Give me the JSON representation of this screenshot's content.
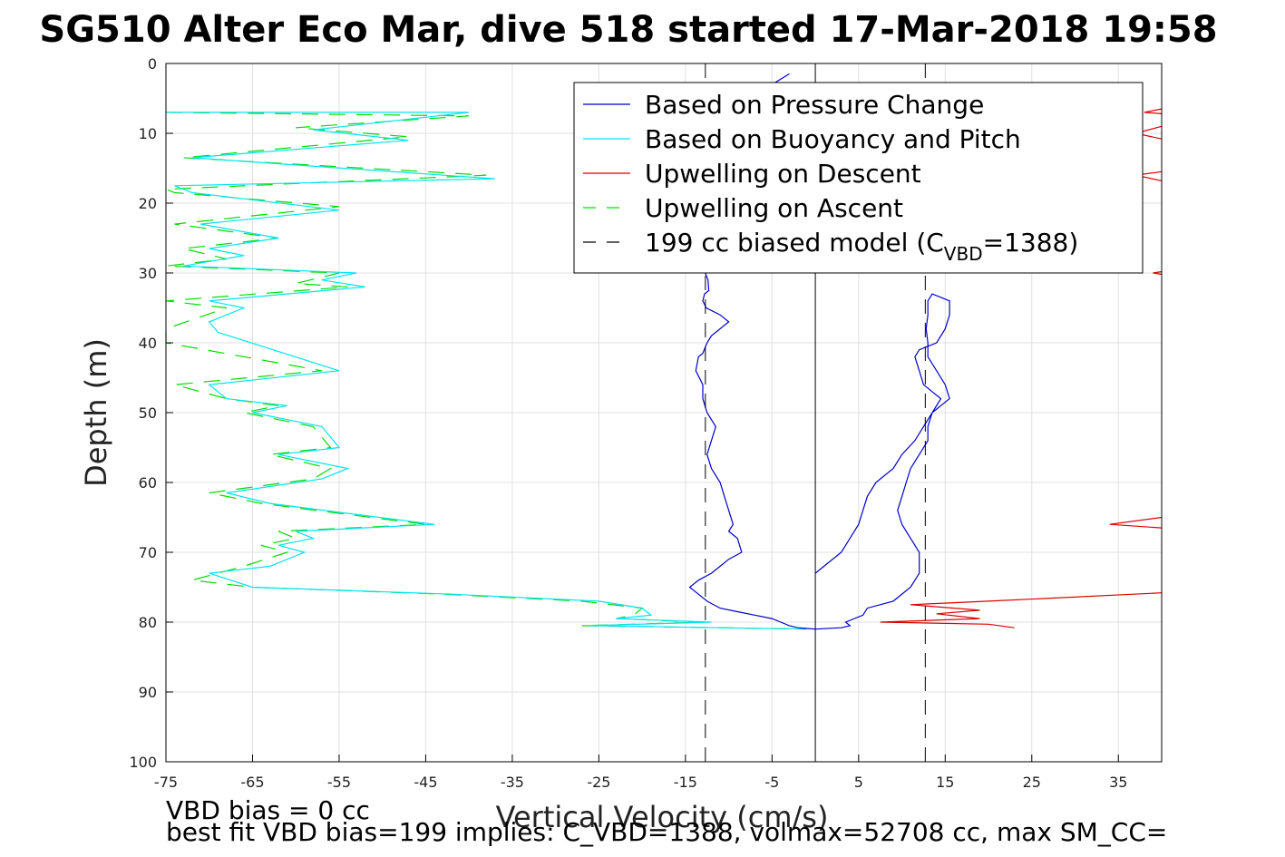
{
  "chart_data": {
    "type": "line",
    "title": "SG510 Alter Eco Mar, dive 518 started 17-Mar-2018 19:58",
    "xlabel": "Vertical Velocity (cm/s)",
    "ylabel": "Depth (m)",
    "xlim": [
      -75,
      40
    ],
    "ylim": [
      0,
      100
    ],
    "y_reversed": true,
    "xticks": [
      -75,
      -65,
      -55,
      -45,
      -35,
      -25,
      -15,
      -5,
      5,
      15,
      25,
      35
    ],
    "yticks": [
      0,
      10,
      20,
      30,
      40,
      50,
      60,
      70,
      80,
      90,
      100
    ],
    "grid": true,
    "legend_position": "top-right",
    "legend": [
      {
        "label": "Based on Pressure Change",
        "color": "#0000cc",
        "dash": "solid"
      },
      {
        "label": "Based on Buoyancy and Pitch",
        "color": "#00e5ee",
        "dash": "solid"
      },
      {
        "label": "Upwelling on Descent",
        "color": "#dd0000",
        "dash": "solid"
      },
      {
        "label": "Upwelling on Ascent",
        "color": "#00dd00",
        "dash": "dashed"
      },
      {
        "label": "199 cc biased model (C",
        "sub": "VBD",
        "suffix": "=1388)",
        "color": "#000000",
        "dash": "dashed"
      }
    ],
    "series": [
      {
        "name": "Based on Pressure Change",
        "segments": [
          {
            "x": [
              -3,
              -5,
              -7,
              -9,
              -10,
              -11,
              -12,
              -12.5,
              -12.8,
              -13,
              -13,
              -12.6,
              -12.7,
              -12.4,
              -12.3,
              -12.8,
              -13,
              -12.6,
              -11,
              -10,
              -12,
              -12.5,
              -13,
              -13.5,
              -13.8,
              -13,
              -13,
              -12.5,
              -11.5,
              -12,
              -12.5,
              -12,
              -11,
              -10.5,
              -10,
              -9.5,
              -10,
              -9,
              -8.5,
              -10,
              -11,
              -12,
              -13.5,
              -14.5,
              -13.5,
              -12.5,
              -11,
              -9,
              -7,
              -5,
              -4,
              -3,
              -2,
              0
            ],
            "y": [
              1.5,
              3,
              5,
              8,
              10,
              13,
              15,
              18,
              21,
              24,
              27,
              29,
              30,
              31,
              32.5,
              33,
              34,
              35,
              36,
              37,
              39,
              40,
              41.5,
              42,
              44,
              46,
              48,
              50,
              52,
              54,
              56,
              58,
              60,
              62,
              64,
              66,
              67,
              68,
              70,
              71,
              72,
              73,
              74,
              75,
              76,
              77,
              78,
              78.5,
              79,
              79.5,
              80,
              80.5,
              80.8,
              81
            ]
          },
          {
            "x": [
              0,
              3,
              4,
              3.5,
              5.5,
              6,
              9,
              11,
              12,
              12,
              11,
              10,
              9.5,
              10,
              10.5,
              11,
              12,
              13,
              13,
              13.5,
              14.5,
              12.5,
              12,
              11.5,
              12,
              14,
              15,
              15.5,
              15.5,
              14.5,
              13.5,
              13,
              13,
              12.8,
              13,
              13,
              14,
              15,
              15.5,
              13.5,
              12.5,
              11.5,
              10,
              9,
              7,
              6,
              5.5,
              5,
              4,
              3,
              1,
              0
            ],
            "y": [
              81,
              80.8,
              80.5,
              80,
              79,
              78,
              77,
              75,
              73,
              70,
              68,
              66,
              64,
              62,
              60,
              58,
              56,
              54,
              52,
              50,
              48,
              46,
              44,
              42,
              41,
              40,
              38,
              36,
              34,
              33.5,
              33,
              34,
              36,
              38,
              40,
              42,
              44,
              46,
              48,
              50,
              52,
              54,
              56,
              58,
              60,
              62,
              64,
              66,
              68,
              70,
              72,
              73
            ]
          }
        ]
      },
      {
        "name": "Based on Buoyancy and Pitch",
        "x": [
          -75,
          -40,
          -58,
          -47,
          -72,
          -37,
          -74,
          -72,
          -55,
          -71,
          -62,
          -70,
          -66,
          -73,
          -53,
          -57,
          -52,
          -70,
          -66,
          -70,
          -69,
          -55,
          -70,
          -68,
          -61,
          -65,
          -61,
          -57,
          -55,
          -62,
          -54,
          -57,
          -68,
          -63,
          -44,
          -60,
          -58,
          -62,
          -59,
          -63,
          -70,
          -65,
          -42,
          -25,
          -20,
          -19,
          -23,
          -12,
          -26,
          -1
        ],
        "y": [
          7,
          7,
          9.5,
          11,
          13.5,
          16.5,
          17.5,
          18.5,
          21,
          23,
          25,
          26.5,
          27.5,
          29,
          30,
          31,
          32,
          34,
          35,
          37,
          38.5,
          44,
          46,
          48,
          49,
          50,
          51,
          52,
          55,
          56,
          58,
          59.5,
          61.5,
          63,
          66,
          67,
          68,
          69,
          70,
          72,
          73,
          75,
          76,
          77,
          78,
          79,
          79.5,
          80,
          80.5,
          81
        ]
      },
      {
        "name": "Upwelling on Descent",
        "segments": [
          {
            "x": [
              40,
              38,
              40
            ],
            "y": [
              6.5,
              7,
              7.2
            ]
          },
          {
            "x": [
              40,
              37,
              40
            ],
            "y": [
              9,
              10,
              10.8
            ]
          },
          {
            "x": [
              40,
              37,
              40
            ],
            "y": [
              15.5,
              16,
              16.8
            ]
          },
          {
            "x": [
              40,
              39,
              40
            ],
            "y": [
              29.8,
              30,
              30.2
            ]
          },
          {
            "x": [
              40,
              34,
              40
            ],
            "y": [
              65,
              66,
              66.5
            ]
          },
          {
            "x": [
              40,
              20,
              11,
              19,
              14,
              19,
              7.5,
              20,
              23
            ],
            "y": [
              75.8,
              77,
              77.5,
              78.3,
              78.8,
              79.5,
              80,
              80.3,
              80.8
            ]
          }
        ]
      },
      {
        "name": "Upwelling on Ascent",
        "x": [
          -75,
          -40,
          -60,
          -47,
          -73,
          -38,
          -76,
          -74,
          -55,
          -74,
          -62,
          -73,
          -68,
          -75,
          -55,
          -60,
          -54,
          -75,
          -68,
          -77,
          -75,
          -57,
          -74,
          -68,
          -62,
          -66,
          -62,
          -58,
          -56,
          -63,
          -56,
          -58,
          -70,
          -64,
          -45,
          -62,
          -60,
          -64,
          -61,
          -66,
          -72,
          -65,
          -43,
          -27,
          -20,
          -21,
          -23,
          -13,
          -27,
          -1
        ],
        "y": [
          7,
          7.5,
          9.2,
          10.5,
          13.5,
          16,
          18,
          18.5,
          20.5,
          23,
          25,
          26.5,
          28,
          29,
          30,
          31.5,
          32,
          34,
          35,
          38,
          40,
          44,
          46,
          48,
          49,
          50,
          51,
          52,
          55,
          56,
          58,
          59.5,
          61.5,
          63,
          66,
          67,
          68,
          69,
          70,
          72,
          74,
          75,
          76,
          77,
          78,
          79,
          79.5,
          80,
          80.5,
          81
        ]
      },
      {
        "name": "199 cc biased model (C_VBD=1388)",
        "vlines": [
          -12.7,
          12.7
        ]
      }
    ],
    "reference_vline_x": 0
  },
  "footnotes": {
    "line1": "VBD bias = 0 cc",
    "line2": "best fit VBD bias=199 implies: C_VBD=1388, volmax=52708 cc, max SM_CC="
  }
}
